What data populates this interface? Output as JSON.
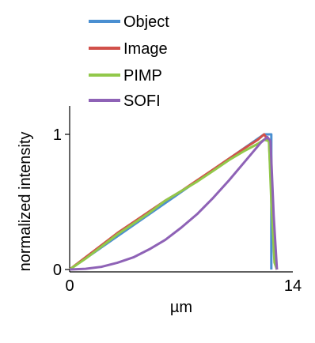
{
  "chart_data": {
    "type": "line",
    "title": "",
    "xlabel": "µm",
    "ylabel": "normalized intensity",
    "xlim": [
      0,
      14
    ],
    "ylim": [
      0,
      1
    ],
    "xticks": [
      0,
      14
    ],
    "yticks": [
      0,
      1
    ],
    "grid": false,
    "legend": "top-center",
    "series": [
      {
        "name": "Object",
        "color": "#4a8fd1",
        "x": [
          0,
          12.2,
          12.2,
          12.65,
          12.65
        ],
        "y": [
          0,
          1,
          1,
          1,
          0
        ]
      },
      {
        "name": "Image",
        "color": "#d1504a",
        "x": [
          0,
          1,
          2,
          3,
          4,
          5,
          6,
          7,
          8,
          9,
          10,
          11,
          11.8,
          12.2,
          12.5,
          12.7,
          12.85,
          13.0
        ],
        "y": [
          0.0,
          0.09,
          0.18,
          0.27,
          0.35,
          0.43,
          0.51,
          0.58,
          0.66,
          0.74,
          0.82,
          0.9,
          0.96,
          1.0,
          0.95,
          0.45,
          0.08,
          0.0
        ]
      },
      {
        "name": "PIMP",
        "color": "#92c84a",
        "x": [
          0,
          1,
          2,
          3,
          4,
          5,
          6,
          7,
          8,
          9,
          10,
          11,
          11.8,
          12.2,
          12.5,
          12.65,
          12.85,
          13.0
        ],
        "y": [
          0.0,
          0.08,
          0.17,
          0.26,
          0.34,
          0.42,
          0.51,
          0.58,
          0.65,
          0.73,
          0.81,
          0.88,
          0.93,
          0.96,
          0.95,
          0.5,
          0.05,
          0.0
        ]
      },
      {
        "name": "SOFI",
        "color": "#8e62b6",
        "x": [
          0,
          1,
          2,
          3,
          4,
          5,
          6,
          7,
          8,
          9,
          10,
          11,
          12,
          12.4,
          12.6,
          12.8,
          13.0
        ],
        "y": [
          0.0,
          0.005,
          0.02,
          0.05,
          0.09,
          0.15,
          0.22,
          0.31,
          0.41,
          0.53,
          0.66,
          0.8,
          0.94,
          0.98,
          0.95,
          0.4,
          0.0
        ]
      }
    ]
  }
}
